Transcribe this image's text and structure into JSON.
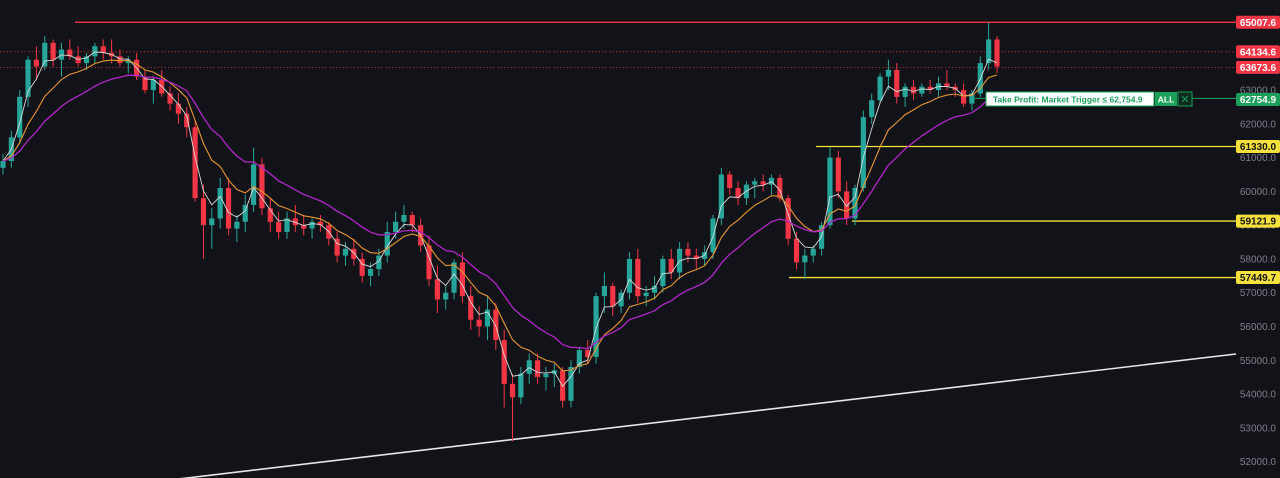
{
  "chart_data": {
    "type": "candlestick",
    "y_axis": {
      "ticks": [
        {
          "value": 63000,
          "label": "63000.0"
        },
        {
          "value": 62000,
          "label": "62000.0"
        },
        {
          "value": 61000,
          "label": "61000.0"
        },
        {
          "value": 60000,
          "label": "60000.0"
        },
        {
          "value": 59000,
          "label": "59000.0"
        },
        {
          "value": 58000,
          "label": "58000.0"
        },
        {
          "value": 57000,
          "label": "57000.0"
        },
        {
          "value": 56000,
          "label": "56000.0"
        },
        {
          "value": 55000,
          "label": "55000.0"
        },
        {
          "value": 54000,
          "label": "54000.0"
        },
        {
          "value": 53000,
          "label": "53000.0"
        },
        {
          "value": 52000,
          "label": "52000.0"
        }
      ],
      "range": [
        51800,
        65500
      ]
    },
    "price_lines": [
      {
        "value": 65007.6,
        "label": "65007.6",
        "color": "#f23645",
        "style": "solid"
      },
      {
        "value": 64134.6,
        "label": "64134.6",
        "color": "#f23645",
        "style": "dotted"
      },
      {
        "value": 63673.6,
        "label": "63673.6",
        "color": "#f23645",
        "style": "dotted"
      },
      {
        "value": 61330.0,
        "label": "61330.0",
        "color": "#f5e13c",
        "style": "solid"
      },
      {
        "value": 59121.9,
        "label": "59121.9",
        "color": "#f5e13c",
        "style": "solid"
      },
      {
        "value": 57449.7,
        "label": "57449.7",
        "color": "#f5e13c",
        "style": "solid"
      }
    ],
    "take_profit": {
      "value": 62754.9,
      "label": "62754.9",
      "text": "Take Profit: Market Trigger ≤ 62,754.9",
      "qty": "ALL",
      "color": "#1aa05a"
    },
    "colors": {
      "up": "#26a69a",
      "down": "#f23645",
      "ma_fast": "#d9d9d9",
      "ma_mid": "#e8962e",
      "ma_slow": "#b026c9"
    },
    "candles": [
      [
        60700,
        61100,
        60500,
        60900
      ],
      [
        60900,
        61800,
        60700,
        61600
      ],
      [
        61600,
        63000,
        61400,
        62800
      ],
      [
        62800,
        64000,
        62500,
        63900
      ],
      [
        63900,
        64300,
        63300,
        63700
      ],
      [
        63700,
        64600,
        63600,
        64400
      ],
      [
        64400,
        64500,
        63700,
        63900
      ],
      [
        63900,
        64400,
        63400,
        64200
      ],
      [
        64200,
        64500,
        63900,
        64000
      ],
      [
        64000,
        64300,
        63700,
        63800
      ],
      [
        63800,
        64100,
        63600,
        64000
      ],
      [
        64000,
        64400,
        63800,
        64300
      ],
      [
        64300,
        64500,
        63900,
        64100
      ],
      [
        64100,
        64500,
        63800,
        64000
      ],
      [
        64000,
        64200,
        63700,
        63800
      ],
      [
        63800,
        64000,
        63500,
        63900
      ],
      [
        63900,
        64100,
        63300,
        63400
      ],
      [
        63400,
        63600,
        62900,
        63000
      ],
      [
        63000,
        63400,
        62600,
        63300
      ],
      [
        63300,
        63600,
        62800,
        62900
      ],
      [
        62900,
        63100,
        62400,
        62600
      ],
      [
        62600,
        62900,
        62000,
        62300
      ],
      [
        62300,
        62500,
        61600,
        61900
      ],
      [
        61900,
        62100,
        59700,
        59800
      ],
      [
        59800,
        60200,
        58000,
        59000
      ],
      [
        59000,
        59500,
        58300,
        59200
      ],
      [
        59200,
        60400,
        58900,
        60100
      ],
      [
        60100,
        60400,
        58700,
        58900
      ],
      [
        58900,
        59300,
        58500,
        59100
      ],
      [
        59100,
        59900,
        58800,
        59600
      ],
      [
        59600,
        61300,
        59400,
        60800
      ],
      [
        60800,
        61000,
        59300,
        59500
      ],
      [
        59500,
        59800,
        58800,
        59100
      ],
      [
        59100,
        59400,
        58600,
        58800
      ],
      [
        58800,
        59400,
        58600,
        59200
      ],
      [
        59200,
        59600,
        58800,
        59000
      ],
      [
        59000,
        59300,
        58700,
        58900
      ],
      [
        58900,
        59200,
        58600,
        59100
      ],
      [
        59100,
        59300,
        58800,
        59000
      ],
      [
        59000,
        59100,
        58400,
        58600
      ],
      [
        58600,
        58800,
        57900,
        58100
      ],
      [
        58100,
        58500,
        57800,
        58300
      ],
      [
        58300,
        58600,
        57800,
        58000
      ],
      [
        58000,
        58200,
        57300,
        57500
      ],
      [
        57500,
        57900,
        57200,
        57700
      ],
      [
        57700,
        58300,
        57500,
        58100
      ],
      [
        58100,
        59100,
        57900,
        58800
      ],
      [
        58800,
        59400,
        58600,
        59100
      ],
      [
        59100,
        59600,
        58900,
        59300
      ],
      [
        59300,
        59400,
        58800,
        59000
      ],
      [
        59000,
        59200,
        58200,
        58400
      ],
      [
        58400,
        58700,
        57200,
        57400
      ],
      [
        57400,
        57800,
        56400,
        56800
      ],
      [
        56800,
        57200,
        56500,
        57000
      ],
      [
        57000,
        58000,
        56800,
        57900
      ],
      [
        57900,
        58200,
        56700,
        56900
      ],
      [
        56900,
        57200,
        55900,
        56200
      ],
      [
        56200,
        56600,
        55700,
        56000
      ],
      [
        56000,
        56900,
        55600,
        56500
      ],
      [
        56500,
        56700,
        55300,
        55600
      ],
      [
        55600,
        55900,
        53600,
        54300
      ],
      [
        54300,
        54600,
        52600,
        53900
      ],
      [
        53900,
        54800,
        53700,
        54600
      ],
      [
        54600,
        55200,
        54300,
        55000
      ],
      [
        55000,
        55200,
        54300,
        54500
      ],
      [
        54500,
        54800,
        54100,
        54600
      ],
      [
        54600,
        54900,
        54200,
        54700
      ],
      [
        54700,
        54800,
        53600,
        53800
      ],
      [
        53800,
        55000,
        53600,
        54800
      ],
      [
        54800,
        55400,
        54600,
        55300
      ],
      [
        55300,
        55600,
        54900,
        55100
      ],
      [
        55100,
        57000,
        54900,
        56900
      ],
      [
        56900,
        57600,
        56400,
        57200
      ],
      [
        57200,
        57300,
        56300,
        56600
      ],
      [
        56600,
        57100,
        56400,
        57000
      ],
      [
        57000,
        58200,
        56800,
        58000
      ],
      [
        58000,
        58300,
        56700,
        56900
      ],
      [
        56900,
        57200,
        56600,
        57000
      ],
      [
        57000,
        57500,
        56800,
        57200
      ],
      [
        57200,
        58100,
        57000,
        58000
      ],
      [
        58000,
        58300,
        57400,
        57600
      ],
      [
        57600,
        58500,
        57400,
        58300
      ],
      [
        58300,
        58500,
        57900,
        58100
      ],
      [
        58100,
        58300,
        57700,
        58000
      ],
      [
        58000,
        58400,
        57800,
        58200
      ],
      [
        58200,
        59300,
        58000,
        59200
      ],
      [
        59200,
        60700,
        59000,
        60500
      ],
      [
        60500,
        60600,
        59900,
        60100
      ],
      [
        60100,
        60300,
        59600,
        59800
      ],
      [
        59800,
        60300,
        59600,
        60200
      ],
      [
        60200,
        60400,
        59800,
        60300
      ],
      [
        60300,
        60500,
        60000,
        60200
      ],
      [
        60200,
        60500,
        59900,
        60400
      ],
      [
        60400,
        60500,
        59700,
        59800
      ],
      [
        59800,
        59900,
        58400,
        58600
      ],
      [
        58600,
        58800,
        57700,
        57900
      ],
      [
        57900,
        58300,
        57400,
        58100
      ],
      [
        58100,
        58400,
        57900,
        58300
      ],
      [
        58300,
        59100,
        58100,
        59000
      ],
      [
        59000,
        61300,
        58900,
        61000
      ],
      [
        61000,
        61200,
        59800,
        60000
      ],
      [
        60000,
        60300,
        59000,
        59200
      ],
      [
        59200,
        60200,
        59000,
        60100
      ],
      [
        60100,
        62400,
        60000,
        62200
      ],
      [
        62200,
        62900,
        62000,
        62700
      ],
      [
        62700,
        63500,
        62600,
        63400
      ],
      [
        63400,
        63900,
        63000,
        63600
      ],
      [
        63600,
        63800,
        62600,
        62800
      ],
      [
        62800,
        63200,
        62500,
        63100
      ],
      [
        63100,
        63300,
        62700,
        62900
      ],
      [
        62900,
        63200,
        62800,
        63100
      ],
      [
        63100,
        63300,
        62900,
        63000
      ],
      [
        63000,
        63400,
        62800,
        63200
      ],
      [
        63200,
        63600,
        63000,
        63100
      ],
      [
        63100,
        63200,
        62800,
        63000
      ],
      [
        63000,
        63200,
        62500,
        62600
      ],
      [
        62600,
        63000,
        62400,
        62900
      ],
      [
        62900,
        64000,
        62800,
        63800
      ],
      [
        63800,
        65000,
        63600,
        64500
      ],
      [
        64500,
        64600,
        63500,
        63700
      ]
    ]
  }
}
